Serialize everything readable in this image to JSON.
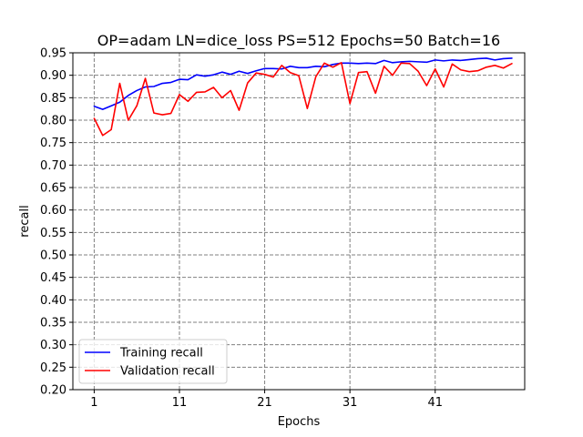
{
  "chart_data": {
    "type": "line",
    "title": "OP=adam LN=dice_loss PS=512 Epochs=50 Batch=16",
    "xlabel": "Epochs",
    "ylabel": "recall",
    "xlim": [
      -1.5,
      51.5
    ],
    "ylim": [
      0.2,
      0.95
    ],
    "xticks": [
      1,
      11,
      21,
      31,
      41
    ],
    "yticks": [
      0.2,
      0.25,
      0.3,
      0.35,
      0.4,
      0.45,
      0.5,
      0.55,
      0.6,
      0.65,
      0.7,
      0.75,
      0.8,
      0.85,
      0.9,
      0.95
    ],
    "grid": true,
    "grid_style": "dashed",
    "legend_position": "lower-left",
    "x": [
      1,
      2,
      3,
      4,
      5,
      6,
      7,
      8,
      9,
      10,
      11,
      12,
      13,
      14,
      15,
      16,
      17,
      18,
      19,
      20,
      21,
      22,
      23,
      24,
      25,
      26,
      27,
      28,
      29,
      30,
      31,
      32,
      33,
      34,
      35,
      36,
      37,
      38,
      39,
      40,
      41,
      42,
      43,
      44,
      45,
      46,
      47,
      48,
      49,
      50
    ],
    "series": [
      {
        "name": "Training recall",
        "color": "#0000ff",
        "values": [
          0.831,
          0.824,
          0.832,
          0.84,
          0.855,
          0.866,
          0.874,
          0.875,
          0.882,
          0.884,
          0.891,
          0.89,
          0.901,
          0.898,
          0.901,
          0.907,
          0.902,
          0.909,
          0.904,
          0.91,
          0.915,
          0.915,
          0.914,
          0.92,
          0.917,
          0.917,
          0.92,
          0.919,
          0.924,
          0.927,
          0.927,
          0.926,
          0.927,
          0.926,
          0.933,
          0.928,
          0.93,
          0.931,
          0.93,
          0.929,
          0.934,
          0.932,
          0.934,
          0.933,
          0.935,
          0.937,
          0.938,
          0.934,
          0.937,
          0.938
        ]
      },
      {
        "name": "Validation recall",
        "color": "#ff0000",
        "values": [
          0.804,
          0.766,
          0.779,
          0.882,
          0.8,
          0.832,
          0.893,
          0.816,
          0.812,
          0.815,
          0.857,
          0.842,
          0.862,
          0.863,
          0.873,
          0.85,
          0.866,
          0.822,
          0.883,
          0.905,
          0.902,
          0.896,
          0.922,
          0.906,
          0.899,
          0.826,
          0.897,
          0.927,
          0.918,
          0.928,
          0.837,
          0.906,
          0.908,
          0.86,
          0.92,
          0.9,
          0.927,
          0.926,
          0.909,
          0.877,
          0.914,
          0.874,
          0.925,
          0.912,
          0.908,
          0.91,
          0.918,
          0.922,
          0.916,
          0.926
        ]
      }
    ]
  }
}
